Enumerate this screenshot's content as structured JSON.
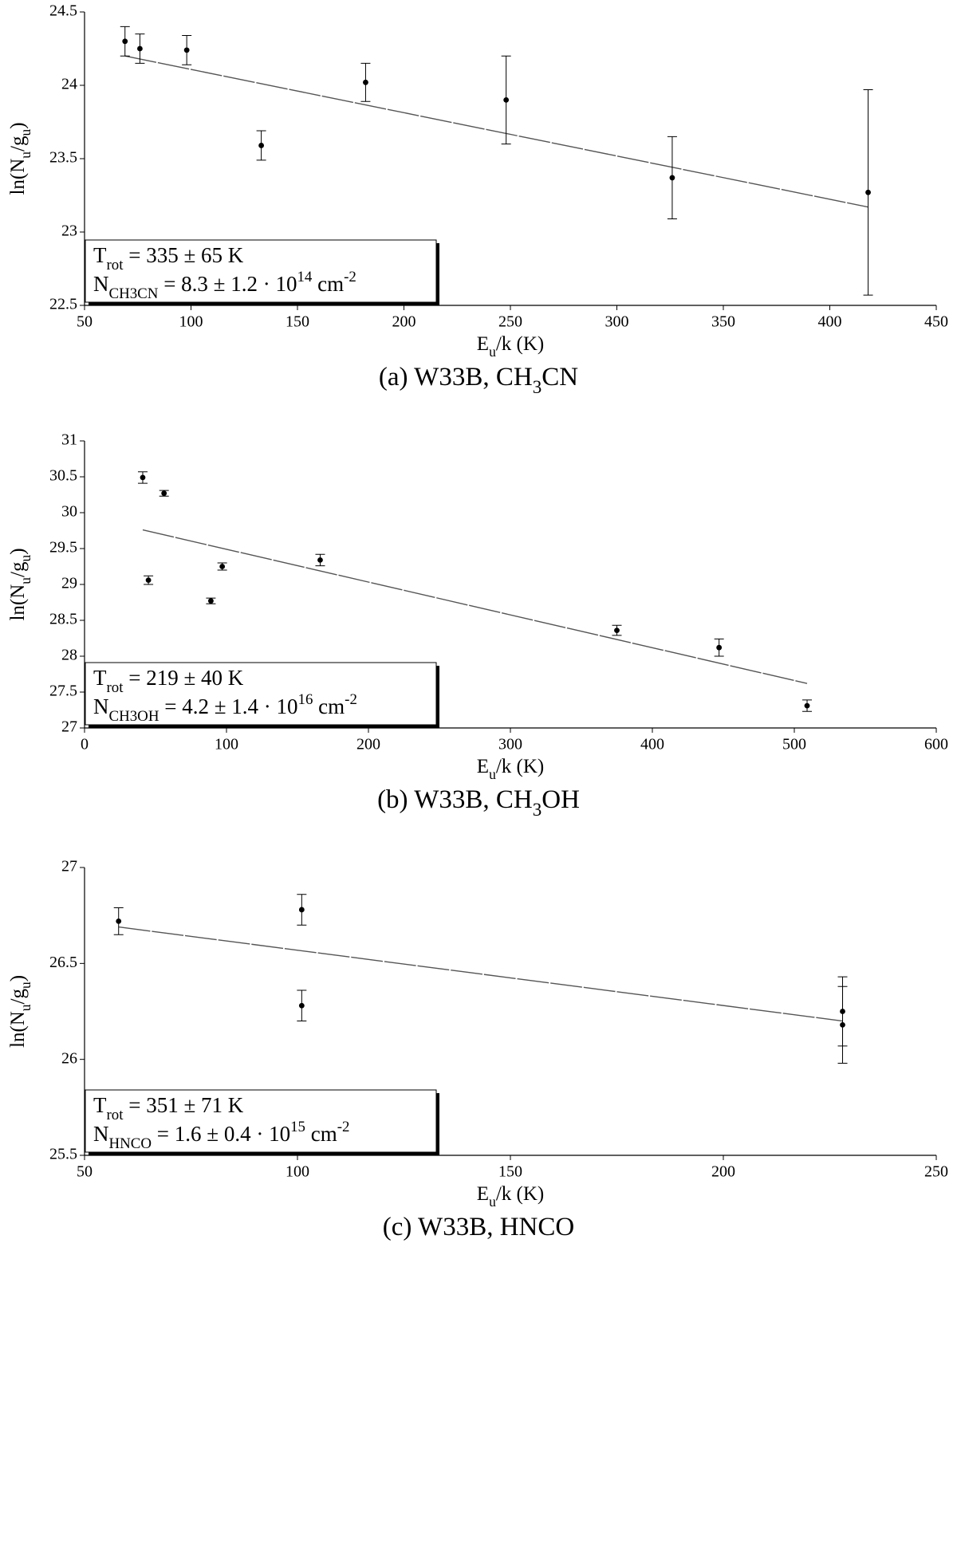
{
  "chart_data": [
    {
      "type": "scatter",
      "caption": [
        {
          "text": "(a)  W33B, CH"
        },
        {
          "text": "3",
          "shift": "sub"
        },
        {
          "text": "CN"
        }
      ],
      "xlabel": [
        {
          "text": "E"
        },
        {
          "text": "u",
          "shift": "sub"
        },
        {
          "text": "/k (K)"
        }
      ],
      "ylabel": [
        {
          "text": "ln(N"
        },
        {
          "text": "u",
          "shift": "sub"
        },
        {
          "text": "/g"
        },
        {
          "text": "u",
          "shift": "sub"
        },
        {
          "text": ")"
        }
      ],
      "annotation": [
        [
          {
            "text": "T"
          },
          {
            "text": "rot",
            "shift": "sub"
          },
          {
            "text": " = 335 ± 65 K"
          }
        ],
        [
          {
            "text": "N"
          },
          {
            "text": "CH3CN",
            "shift": "sub"
          },
          {
            "text": " = 8.3 ± 1.2 · 10"
          },
          {
            "text": "14",
            "shift": "super"
          },
          {
            "text": " cm"
          },
          {
            "text": "-2",
            "shift": "super"
          }
        ]
      ],
      "xlim": [
        50,
        450
      ],
      "xticks": [
        50,
        100,
        150,
        200,
        250,
        300,
        350,
        400,
        450
      ],
      "ylim": [
        22.5,
        24.5
      ],
      "yticks": [
        22.5,
        23,
        23.5,
        24,
        24.5
      ],
      "x": [
        69,
        76,
        98,
        133,
        182,
        248,
        326,
        418
      ],
      "values": [
        24.3,
        24.25,
        24.24,
        23.59,
        24.02,
        23.9,
        23.37,
        23.27
      ],
      "errors": [
        0.1,
        0.1,
        0.1,
        0.1,
        0.13,
        0.3,
        0.28,
        0.7
      ],
      "fit": {
        "x": [
          69,
          418
        ],
        "values": [
          24.2,
          23.17
        ]
      },
      "color": "#000000",
      "fit_color": "#555555"
    },
    {
      "type": "scatter",
      "caption": [
        {
          "text": "(b)  W33B, CH"
        },
        {
          "text": "3",
          "shift": "sub"
        },
        {
          "text": "OH"
        }
      ],
      "xlabel": [
        {
          "text": "E"
        },
        {
          "text": "u",
          "shift": "sub"
        },
        {
          "text": "/k (K)"
        }
      ],
      "ylabel": [
        {
          "text": "ln(N"
        },
        {
          "text": "u",
          "shift": "sub"
        },
        {
          "text": "/g"
        },
        {
          "text": "u",
          "shift": "sub"
        },
        {
          "text": ")"
        }
      ],
      "annotation": [
        [
          {
            "text": "T"
          },
          {
            "text": "rot",
            "shift": "sub"
          },
          {
            "text": " = 219 ± 40 K"
          }
        ],
        [
          {
            "text": "N"
          },
          {
            "text": "CH3OH",
            "shift": "sub"
          },
          {
            "text": " = 4.2 ± 1.4 · 10"
          },
          {
            "text": "16",
            "shift": "super"
          },
          {
            "text": " cm"
          },
          {
            "text": "-2",
            "shift": "super"
          }
        ]
      ],
      "xlim": [
        0,
        600
      ],
      "xticks": [
        0,
        100,
        200,
        300,
        400,
        500,
        600
      ],
      "ylim": [
        27,
        31
      ],
      "yticks": [
        27,
        27.5,
        28,
        28.5,
        29,
        29.5,
        30,
        30.5,
        31
      ],
      "x": [
        41,
        45,
        56,
        89,
        97,
        166,
        375,
        447,
        509
      ],
      "values": [
        30.49,
        29.06,
        30.27,
        28.77,
        29.25,
        29.34,
        28.36,
        28.12,
        27.31
      ],
      "errors": [
        0.08,
        0.06,
        0.04,
        0.04,
        0.05,
        0.08,
        0.07,
        0.12,
        0.08
      ],
      "fit": {
        "x": [
          41,
          509
        ],
        "values": [
          29.76,
          27.62
        ]
      },
      "color": "#000000",
      "fit_color": "#555555"
    },
    {
      "type": "scatter",
      "caption": [
        {
          "text": "(c)  W33B, HNCO"
        }
      ],
      "xlabel": [
        {
          "text": "E"
        },
        {
          "text": "u",
          "shift": "sub"
        },
        {
          "text": "/k (K)"
        }
      ],
      "ylabel": [
        {
          "text": "ln(N"
        },
        {
          "text": "u",
          "shift": "sub"
        },
        {
          "text": "/g"
        },
        {
          "text": "u",
          "shift": "sub"
        },
        {
          "text": ")"
        }
      ],
      "annotation": [
        [
          {
            "text": "T"
          },
          {
            "text": "rot",
            "shift": "sub"
          },
          {
            "text": " = 351 ± 71 K"
          }
        ],
        [
          {
            "text": "N"
          },
          {
            "text": "HNCO",
            "shift": "sub"
          },
          {
            "text": " = 1.6 ± 0.4 · 10"
          },
          {
            "text": "15",
            "shift": "super"
          },
          {
            "text": " cm"
          },
          {
            "text": "-2",
            "shift": "super"
          }
        ]
      ],
      "xlim": [
        50,
        250
      ],
      "xticks": [
        50,
        100,
        150,
        200,
        250
      ],
      "ylim": [
        25.5,
        27
      ],
      "yticks": [
        25.5,
        26,
        26.5,
        27
      ],
      "x": [
        58,
        101,
        101,
        228,
        228
      ],
      "values": [
        26.72,
        26.78,
        26.28,
        26.25,
        26.18
      ],
      "errors": [
        0.07,
        0.08,
        0.08,
        0.18,
        0.2
      ],
      "fit": {
        "x": [
          58,
          228
        ],
        "values": [
          26.69,
          26.2
        ]
      },
      "color": "#000000",
      "fit_color": "#555555"
    }
  ]
}
